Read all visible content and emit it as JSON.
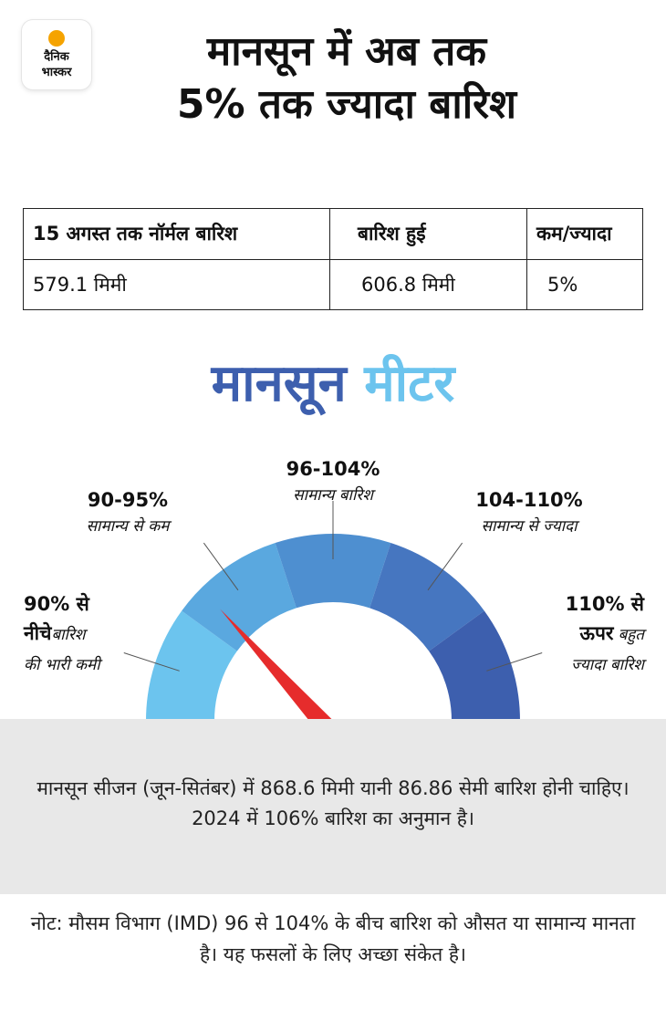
{
  "logo": {
    "line1": "दैनिक",
    "line2": "भास्कर"
  },
  "headline": {
    "line1": "मानसून में अब तक",
    "line2": "5% तक ज्यादा बारिश"
  },
  "table": {
    "headers": [
      "15 अगस्त तक नॉर्मल बारिश",
      "बारिश हुई",
      "कम/ज्यादा"
    ],
    "row": [
      "579.1 मिमी",
      "606.8 मिमी",
      "5%"
    ]
  },
  "meter": {
    "title_part1": "मानसून",
    "title_part2": "मीटर",
    "title_colors": [
      "#3d5fae",
      "#6cc4ee"
    ],
    "needle_value_percent": 92,
    "segments": [
      {
        "range": "90% से",
        "range_line2": "नीचे",
        "desc": "बारिश",
        "desc_line2": "की भारी कमी",
        "color": "#6cc4ee"
      },
      {
        "range": "90-95%",
        "desc": "सामान्य से कम",
        "color": "#5aa8df"
      },
      {
        "range": "96-104%",
        "desc": "सामान्य बारिश",
        "color": "#4e8fd0"
      },
      {
        "range": "104-110%",
        "desc": "सामान्य से ज्यादा",
        "color": "#4676c0"
      },
      {
        "range": "110% से",
        "range_line2": "ऊपर",
        "desc": "बहुत",
        "desc_line2": "ज्यादा बारिश",
        "color": "#3d5fae"
      }
    ],
    "needle_color": "#e62c2c"
  },
  "info_text": "मानसून सीजन (जून-सितंबर) में 868.6 मिमी यानी 86.86 सेमी बारिश होनी चाहिए। 2024 में 106% बारिश का अनुमान है।",
  "note_text": "नोट: मौसम विभाग (IMD) 96 से 104% के बीच बारिश को औसत या सामान्य मानता है। यह फसलों के लिए अच्छा संकेत है।"
}
